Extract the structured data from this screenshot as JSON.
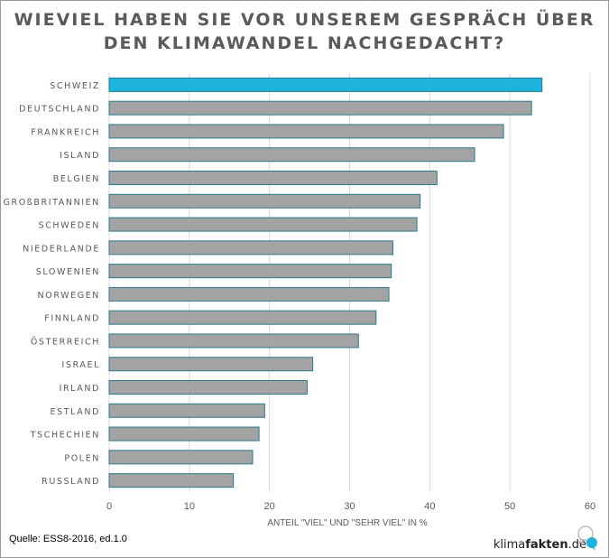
{
  "title_lines": [
    "WIEVIEL HABEN SIE VOR UNSEREM GESPRÄCH ÜBER",
    "DEN KLIMAWANDEL NACHGEDACHT?"
  ],
  "source_text": "Quelle: ESS8-2016, ed.1.0",
  "logo": {
    "prefix": "klima",
    "bold": "fakten",
    "suffix": ".de"
  },
  "colors": {
    "highlight": "#1eb3dc",
    "bar": "#a3a3a3",
    "bar_border": "#2b7a8c",
    "grid": "#d9d9d9",
    "text": "#595959"
  },
  "chart_data": {
    "type": "bar",
    "orientation": "horizontal",
    "title": "WIEVIEL HABEN SIE VOR UNSEREM GESPRÄCH ÜBER DEN KLIMAWANDEL NACHGEDACHT?",
    "xlabel": "ANTEIL \"VIEL\" UND \"SEHR VIEL\" IN %",
    "ylabel": "",
    "xlim": [
      0,
      60
    ],
    "xticks": [
      0,
      10,
      20,
      30,
      40,
      50,
      60
    ],
    "grid": true,
    "highlighted_category": "SCHWEIZ",
    "categories": [
      "SCHWEIZ",
      "DEUTSCHLAND",
      "FRANKREICH",
      "ISLAND",
      "BELGIEN",
      "GROßBRITANNIEN",
      "SCHWEDEN",
      "NIEDERLANDE",
      "SLOWENIEN",
      "NORWEGEN",
      "FINNLAND",
      "ÖSTERREICH",
      "ISRAEL",
      "IRLAND",
      "ESTLAND",
      "TSCHECHIEN",
      "POLEN",
      "RUSSLAND"
    ],
    "values": [
      54.0,
      52.7,
      49.2,
      45.6,
      40.9,
      38.8,
      38.4,
      35.4,
      35.2,
      34.9,
      33.3,
      31.1,
      25.4,
      24.7,
      19.4,
      18.7,
      17.9,
      15.5
    ]
  }
}
